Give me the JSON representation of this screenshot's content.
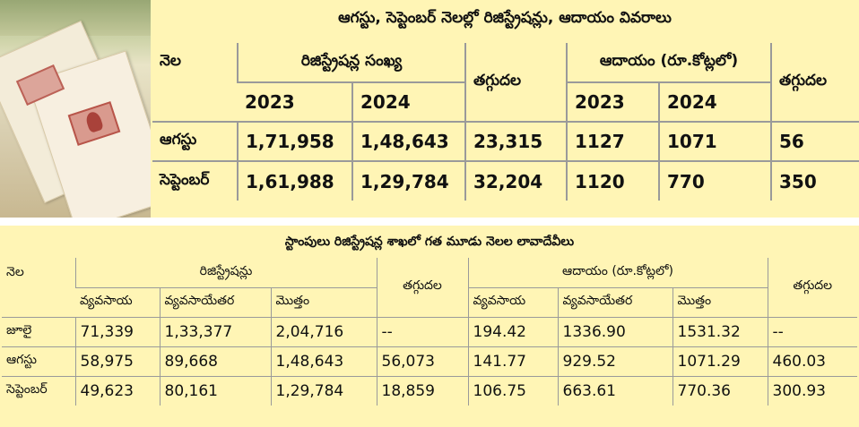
{
  "top": {
    "title": "ఆగస్టు, సెప్టెంబర్ నెలల్లో రిజిస్ట్రేషన్లు, ఆదాయం వివరాలు",
    "headers": {
      "month": "నెల",
      "registrations": "రిజిస్ట్రేషన్ల సంఖ్య",
      "decrease1": "తగ్గుదల",
      "revenue": "ఆదాయం (రూ.కోట్లలో)",
      "decrease2": "తగ్గుదల",
      "year1": "2023",
      "year2": "2024",
      "year3": "2023",
      "year4": "2024"
    },
    "rows": [
      {
        "month": "ఆగస్టు",
        "reg2023": "1,71,958",
        "reg2024": "1,48,643",
        "decrease": "23,315",
        "rev2023": "1127",
        "rev2024": "1071",
        "rev_decrease": "56"
      },
      {
        "month": "సెప్టెంబర్",
        "reg2023": "1,61,988",
        "reg2024": "1,29,784",
        "decrease": "32,204",
        "rev2023": "1120",
        "rev2024": "770",
        "rev_decrease": "350"
      }
    ]
  },
  "bottom": {
    "title": "స్టాంపులు రిజిస్ట్రేషన్ల శాఖలో గత మూడు నెలల లావాదేవీలు",
    "headers": {
      "month": "నెల",
      "registrations": "రిజిస్ట్రేషన్లు",
      "decrease1": "తగ్గుదల",
      "revenue": "ఆదాయం (రూ.కోట్లలో)",
      "decrease2": "తగ్గుదల",
      "agri": "వ్యవసాయ",
      "nonagri": "వ్యవసాయేతర",
      "total": "మొత్తం",
      "agri2": "వ్యవసాయ",
      "nonagri2": "వ్యవసాయేతర",
      "total2": "మొత్తం"
    },
    "rows": [
      {
        "month": "జూలై",
        "agri": "71,339",
        "nonagri": "1,33,377",
        "total": "2,04,716",
        "decrease": "--",
        "rev_agri": "194.42",
        "rev_nonagri": "1336.90",
        "rev_total": "1531.32",
        "rev_decrease": "--"
      },
      {
        "month": "ఆగస్టు",
        "agri": "58,975",
        "nonagri": "89,668",
        "total": "1,48,643",
        "decrease": "56,073",
        "rev_agri": "141.77",
        "rev_nonagri": "929.52",
        "rev_total": "1071.29",
        "rev_decrease": "460.03"
      },
      {
        "month": "సెప్టెంబర్",
        "agri": "49,623",
        "nonagri": "80,161",
        "total": "1,29,784",
        "decrease": "18,859",
        "rev_agri": "106.75",
        "rev_nonagri": "663.61",
        "rev_total": "770.36",
        "rev_decrease": "300.93"
      }
    ]
  }
}
